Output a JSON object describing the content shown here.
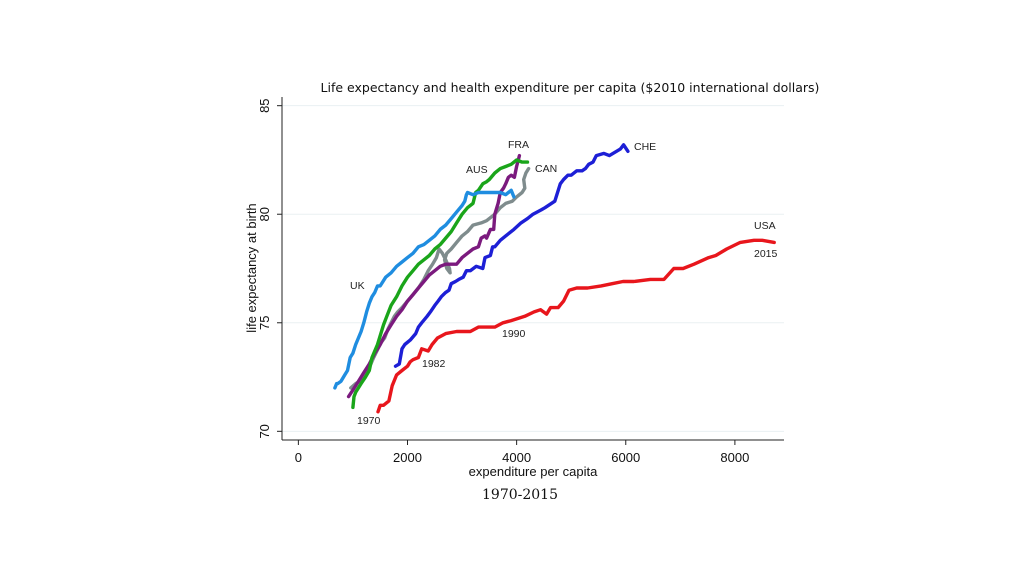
{
  "chart_data": {
    "type": "line",
    "title": "Life expectancy and health expenditure per capita ($2010 international dollars)",
    "subtitle": "1970-2015",
    "xlabel": "expenditure per capita",
    "ylabel": "life expectancy at birth",
    "xlim": [
      -300,
      8900
    ],
    "ylim": [
      69.6,
      85.4
    ],
    "xticks": [
      "0",
      "2000",
      "4000",
      "6000",
      "8000"
    ],
    "yticks": [
      "70",
      "75",
      "80",
      "85"
    ],
    "grid": true,
    "legend": "none",
    "series": [
      {
        "name": "USA",
        "color": "#e8161c",
        "x": [
          1460,
          1500,
          1560,
          1660,
          1720,
          1800,
          1900,
          2000,
          2050,
          2100,
          2200,
          2260,
          2380,
          2450,
          2550,
          2700,
          2900,
          3000,
          3150,
          3300,
          3600,
          3750,
          3900,
          4150,
          4320,
          4440,
          4550,
          4620,
          4760,
          4860,
          4960,
          5100,
          5300,
          5550,
          5750,
          5950,
          6150,
          6450,
          6700,
          6880,
          7050,
          7250,
          7520,
          7650,
          7850,
          8100,
          8350,
          8500,
          8720
        ],
        "y": [
          70.9,
          71.2,
          71.2,
          71.4,
          72.1,
          72.6,
          72.8,
          73.0,
          73.2,
          73.3,
          73.4,
          73.8,
          73.7,
          74.0,
          74.3,
          74.5,
          74.6,
          74.6,
          74.6,
          74.8,
          74.8,
          75.0,
          75.1,
          75.3,
          75.5,
          75.6,
          75.4,
          75.7,
          75.7,
          76.0,
          76.5,
          76.6,
          76.6,
          76.7,
          76.8,
          76.9,
          76.9,
          77.0,
          77.0,
          77.5,
          77.5,
          77.7,
          78.0,
          78.1,
          78.4,
          78.7,
          78.8,
          78.8,
          78.7
        ]
      },
      {
        "name": "CHE",
        "color": "#1d1fd6",
        "x": [
          1780,
          1850,
          1900,
          1950,
          2050,
          2150,
          2200,
          2260,
          2360,
          2420,
          2500,
          2560,
          2620,
          2700,
          2760,
          2800,
          2880,
          2940,
          3020,
          3080,
          3150,
          3260,
          3380,
          3420,
          3520,
          3560,
          3600,
          3700,
          3800,
          3950,
          4080,
          4200,
          4300,
          4450,
          4520,
          4700,
          4800,
          4860,
          4940,
          5000,
          5100,
          5200,
          5260,
          5320,
          5400,
          5460,
          5600,
          5700,
          5900,
          5960,
          6040
        ],
        "y": [
          73.0,
          73.1,
          73.8,
          74.0,
          74.2,
          74.5,
          74.8,
          75.0,
          75.3,
          75.5,
          75.8,
          76.0,
          76.2,
          76.4,
          76.5,
          76.8,
          76.9,
          77.0,
          77.1,
          77.4,
          77.4,
          77.6,
          77.5,
          78.0,
          78.1,
          78.5,
          78.5,
          78.8,
          79.0,
          79.3,
          79.6,
          79.8,
          80.0,
          80.2,
          80.3,
          80.6,
          81.4,
          81.6,
          81.8,
          81.8,
          82.0,
          82.0,
          82.1,
          82.3,
          82.4,
          82.7,
          82.8,
          82.7,
          83.0,
          83.2,
          82.9
        ]
      },
      {
        "name": "CAN",
        "color": "#7f8c8d",
        "x": [
          960,
          1050,
          1120,
          1200,
          1280,
          1330,
          1380,
          1440,
          1520,
          1580,
          1640,
          1700,
          1760,
          1820,
          1900,
          2000,
          2100,
          2200,
          2300,
          2380,
          2460,
          2530,
          2580,
          2640,
          2700,
          2770,
          2780,
          2720,
          2680,
          2720,
          2800,
          2900,
          3000,
          3100,
          3200,
          3350,
          3450,
          3600,
          3700,
          3800,
          3920,
          4000,
          4100,
          4150,
          4130,
          4170,
          4220
        ],
        "y": [
          72.0,
          72.2,
          72.3,
          72.5,
          72.9,
          73.1,
          73.4,
          73.7,
          74.1,
          74.3,
          74.7,
          75.0,
          75.3,
          75.5,
          75.7,
          76.0,
          76.3,
          76.6,
          77.0,
          77.4,
          77.7,
          78.0,
          78.4,
          78.2,
          77.9,
          77.5,
          77.3,
          77.5,
          77.9,
          78.2,
          78.4,
          78.7,
          79.0,
          79.2,
          79.5,
          79.6,
          79.7,
          80.0,
          80.3,
          80.5,
          80.6,
          80.8,
          81.0,
          81.2,
          81.6,
          81.9,
          82.1
        ]
      },
      {
        "name": "FRA",
        "color": "#7b1a7e",
        "x": [
          920,
          1000,
          1100,
          1200,
          1300,
          1400,
          1500,
          1600,
          1700,
          1800,
          1900,
          2000,
          2100,
          2200,
          2300,
          2400,
          2500,
          2600,
          2700,
          2800,
          2900,
          3000,
          3100,
          3200,
          3300,
          3350,
          3420,
          3450,
          3520,
          3580,
          3600,
          3660,
          3700,
          3760,
          3800,
          3850,
          3900,
          3960,
          4000,
          4030,
          4050
        ],
        "y": [
          71.6,
          71.9,
          72.3,
          72.7,
          73.1,
          73.6,
          74.0,
          74.5,
          74.9,
          75.3,
          75.6,
          76.0,
          76.3,
          76.6,
          76.9,
          77.2,
          77.4,
          77.6,
          77.7,
          77.7,
          77.7,
          78.0,
          78.2,
          78.4,
          78.5,
          78.9,
          79.0,
          78.9,
          79.3,
          79.3,
          80.0,
          80.5,
          81.0,
          81.2,
          81.4,
          81.7,
          81.8,
          81.7,
          82.2,
          82.5,
          82.7
        ]
      },
      {
        "name": "AUS",
        "color": "#1aa51a",
        "x": [
          1000,
          1020,
          1050,
          1150,
          1230,
          1300,
          1350,
          1450,
          1560,
          1620,
          1700,
          1800,
          1900,
          2000,
          2100,
          2200,
          2300,
          2400,
          2500,
          2600,
          2700,
          2800,
          2900,
          3000,
          3100,
          3200,
          3250,
          3300,
          3380,
          3450,
          3500,
          3600,
          3700,
          3800,
          3900,
          4000,
          4100,
          4200
        ],
        "y": [
          71.1,
          71.6,
          71.8,
          72.2,
          72.5,
          72.8,
          73.4,
          74.0,
          74.9,
          75.3,
          75.8,
          76.2,
          76.7,
          77.1,
          77.4,
          77.7,
          77.9,
          78.1,
          78.4,
          78.6,
          78.9,
          79.2,
          79.6,
          80.0,
          80.3,
          80.5,
          81.0,
          81.1,
          81.4,
          81.5,
          81.6,
          81.9,
          82.1,
          82.2,
          82.3,
          82.5,
          82.4,
          82.4
        ]
      },
      {
        "name": "UK",
        "color": "#1f8de0",
        "x": [
          670,
          700,
          720,
          780,
          850,
          900,
          950,
          1000,
          1050,
          1100,
          1150,
          1200,
          1250,
          1300,
          1350,
          1400,
          1450,
          1500,
          1600,
          1700,
          1800,
          1900,
          2000,
          2100,
          2200,
          2300,
          2400,
          2500,
          2600,
          2700,
          2800,
          2900,
          3000,
          3050,
          3080,
          3100,
          3200,
          3300,
          3450,
          3600,
          3700,
          3800,
          3850,
          3900,
          3950
        ],
        "y": [
          72.0,
          72.2,
          72.2,
          72.3,
          72.6,
          72.8,
          73.4,
          73.6,
          74.0,
          74.3,
          74.6,
          75.0,
          75.5,
          75.9,
          76.2,
          76.4,
          76.7,
          76.7,
          77.1,
          77.3,
          77.6,
          77.8,
          78.0,
          78.2,
          78.5,
          78.6,
          78.8,
          79.0,
          79.3,
          79.5,
          79.8,
          80.1,
          80.4,
          80.6,
          80.9,
          81.0,
          80.9,
          81.0,
          81.0,
          81.0,
          81.0,
          80.9,
          81.0,
          81.1,
          80.8
        ]
      }
    ],
    "annotations": {
      "year_1970": "1970",
      "year_1982": "1982",
      "year_1990": "1990",
      "year_2015": "2015"
    }
  }
}
